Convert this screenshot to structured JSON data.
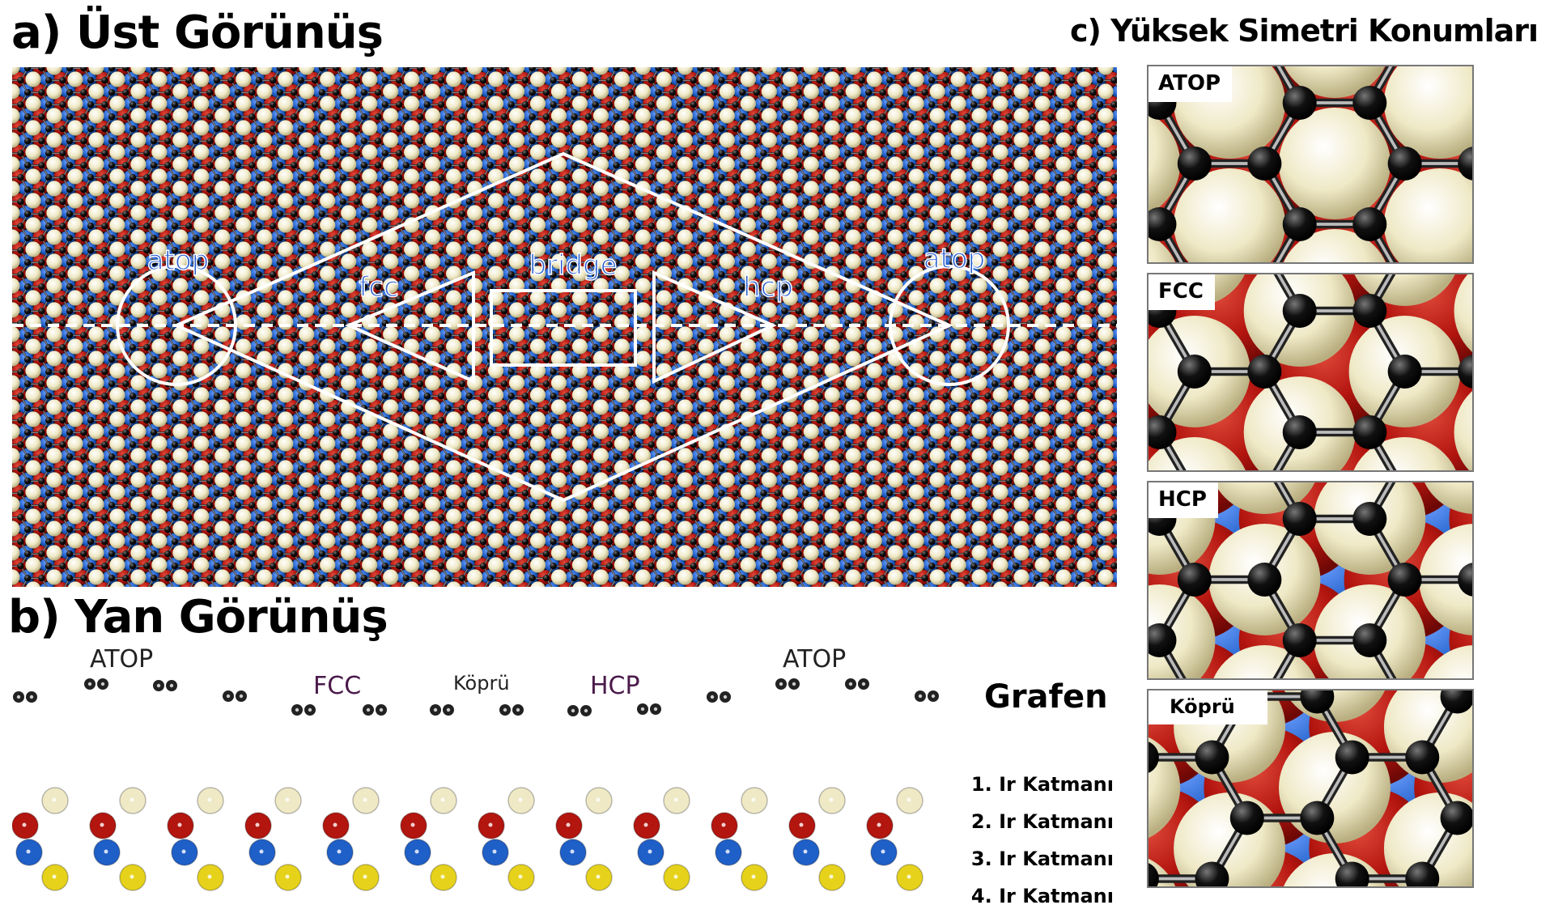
{
  "titles": {
    "a": "a) Üst Görünüş",
    "b": "b) Yan Görünüş",
    "c": "c) Yüksek Simetri Konumları"
  },
  "top_view": {
    "sites": {
      "atop_left": "atop",
      "fcc": "fcc",
      "bridge": "bridge",
      "hcp": "hcp",
      "atop_right": "atop"
    }
  },
  "side_view": {
    "sites": {
      "atop_left": "ATOP",
      "fcc": "FCC",
      "bridge": "Köprü",
      "hcp": "HCP",
      "atop_right": "ATOP"
    },
    "graphene_label": "Grafen",
    "layers": [
      "1. Ir Katmanı",
      "2. Ir Katmanı",
      "3. Ir Katmanı",
      "4. Ir Katmanı"
    ]
  },
  "high_symmetry": {
    "tiles": [
      {
        "label": "ATOP"
      },
      {
        "label": "FCC"
      },
      {
        "label": "HCP"
      },
      {
        "label": "Köprü"
      }
    ]
  },
  "colors": {
    "ir_layer1": "#efe9c6",
    "ir_layer2": "#b3150f",
    "ir_layer3": "#1f5fc8",
    "ir_layer4": "#e6d21a",
    "carbon": "#111111",
    "overlay": "#ffffff"
  }
}
